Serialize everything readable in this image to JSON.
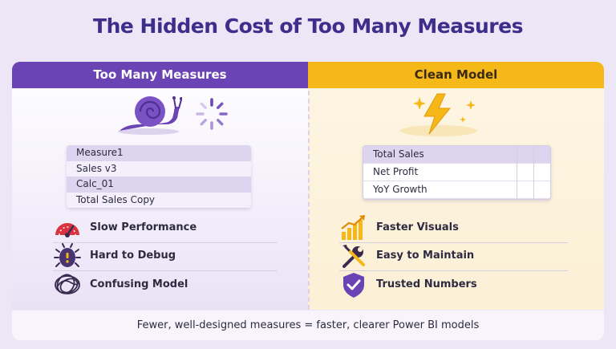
{
  "title": "The Hidden Cost of Too Many Measures",
  "left": {
    "header": "Too Many Measures",
    "illustration_icons": [
      "snail-icon",
      "loading-spinner-icon"
    ],
    "measures": [
      "Measure1",
      "Sales v3",
      "Calc_01",
      "Total Sales Copy"
    ],
    "items": [
      {
        "icon": "speedometer-icon",
        "label": "Slow Performance"
      },
      {
        "icon": "bug-icon",
        "label": "Hard to Debug"
      },
      {
        "icon": "tangled-lines-icon",
        "label": "Confusing Model"
      }
    ]
  },
  "right": {
    "header": "Clean Model",
    "illustration_icons": [
      "lightning-bolt-icon",
      "sparkle-icon"
    ],
    "measures": [
      "Total Sales",
      "Net Profit",
      "YoY Growth"
    ],
    "items": [
      {
        "icon": "rising-bar-chart-icon",
        "label": "Faster Visuals"
      },
      {
        "icon": "wrench-screwdriver-icon",
        "label": "Easy to Maintain"
      },
      {
        "icon": "shield-check-icon",
        "label": "Trusted Numbers"
      }
    ]
  },
  "footer": "Fewer, well-designed measures = faster, clearer Power BI models",
  "colors": {
    "title": "#3e2e8c",
    "left_header": "#6a43b5",
    "right_header": "#f6b818",
    "background": "#ece6f6",
    "accent_purple": "#6a43b5",
    "accent_yellow": "#f6b818",
    "accent_red": "#d8333f"
  }
}
